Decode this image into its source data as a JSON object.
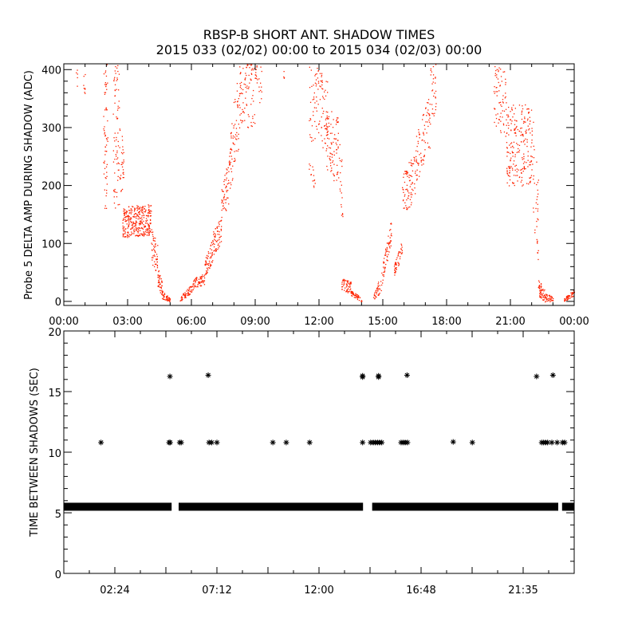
{
  "title": "RBSP-B SHORT ANT. SHADOW TIMES",
  "subtitle": "2015 033 (02/02) 00:00 to 2015 034 (02/03) 00:00",
  "colors": {
    "points": "#ff2200",
    "axes": "#000000",
    "asterisk": "#000000"
  },
  "chart_data": [
    {
      "type": "scatter",
      "ylabel": "Probe 5 DELTA AMP DURING SHADOW (ADC)",
      "xlabel": "",
      "xlim_hours": [
        0,
        24
      ],
      "ylim": [
        -7,
        410
      ],
      "x_major_step_hours": 3,
      "x_minor_step_hours": 1,
      "y_major_step": 100,
      "y_minor_step": 20,
      "xtick_labels": [
        "00:00",
        "03:00",
        "06:00",
        "09:00",
        "12:00",
        "15:00",
        "18:00",
        "21:00",
        "00:00"
      ],
      "ytick_values": [
        0,
        100,
        200,
        300,
        400
      ],
      "ytick_labels": [
        "0",
        "100",
        "200",
        "300",
        "400"
      ],
      "note_point_clusters": "each cluster = [start_hour, end_hour, min_ADC_start, max_ADC_start, min_ADC_end, max_ADC_end, point_count]",
      "point_clusters": [
        [
          0.55,
          0.65,
          360,
          400,
          360,
          400,
          5
        ],
        [
          0.9,
          1.0,
          350,
          400,
          350,
          400,
          8
        ],
        [
          1.85,
          2.05,
          160,
          410,
          160,
          410,
          60
        ],
        [
          2.3,
          2.6,
          160,
          410,
          160,
          410,
          70
        ],
        [
          2.6,
          2.8,
          200,
          300,
          170,
          280,
          30
        ],
        [
          2.75,
          4.1,
          110,
          165,
          115,
          168,
          320
        ],
        [
          4.1,
          4.4,
          70,
          130,
          40,
          100,
          50
        ],
        [
          4.4,
          4.6,
          25,
          60,
          10,
          40,
          40
        ],
        [
          4.6,
          5.0,
          5,
          20,
          0,
          5,
          50
        ],
        [
          5.45,
          6.0,
          0,
          8,
          15,
          30,
          60
        ],
        [
          6.0,
          6.6,
          20,
          40,
          30,
          50,
          70
        ],
        [
          6.6,
          7.0,
          40,
          70,
          70,
          110,
          60
        ],
        [
          7.0,
          7.4,
          80,
          120,
          100,
          150,
          60
        ],
        [
          7.4,
          7.8,
          140,
          200,
          170,
          260,
          60
        ],
        [
          7.8,
          8.2,
          180,
          300,
          250,
          400,
          60
        ],
        [
          8.2,
          9.0,
          300,
          410,
          300,
          410,
          90
        ],
        [
          9.0,
          9.3,
          340,
          410,
          340,
          410,
          20
        ],
        [
          10.3,
          10.35,
          380,
          400,
          380,
          400,
          4
        ],
        [
          11.5,
          11.8,
          230,
          410,
          180,
          400,
          40
        ],
        [
          11.8,
          12.4,
          290,
          410,
          250,
          380,
          80
        ],
        [
          12.3,
          12.9,
          220,
          340,
          200,
          320,
          80
        ],
        [
          12.9,
          13.1,
          150,
          280,
          140,
          270,
          20
        ],
        [
          13.05,
          13.5,
          15,
          40,
          15,
          35,
          60
        ],
        [
          13.5,
          14.0,
          10,
          22,
          0,
          5,
          50
        ],
        [
          14.5,
          15.0,
          0,
          5,
          20,
          60,
          40
        ],
        [
          15.0,
          15.4,
          40,
          70,
          100,
          145,
          60
        ],
        [
          15.5,
          15.9,
          40,
          60,
          80,
          110,
          50
        ],
        [
          15.9,
          16.5,
          150,
          220,
          170,
          260,
          80
        ],
        [
          16.5,
          17.2,
          200,
          280,
          260,
          360,
          80
        ],
        [
          17.2,
          17.5,
          300,
          410,
          330,
          410,
          30
        ],
        [
          20.2,
          20.8,
          300,
          410,
          280,
          400,
          70
        ],
        [
          20.8,
          22.0,
          200,
          340,
          200,
          340,
          220
        ],
        [
          22.0,
          22.3,
          150,
          360,
          60,
          220,
          40
        ],
        [
          22.3,
          22.6,
          10,
          40,
          0,
          20,
          50
        ],
        [
          22.6,
          23.0,
          0,
          15,
          0,
          10,
          40
        ],
        [
          23.5,
          24.0,
          0,
          5,
          10,
          22,
          50
        ]
      ]
    },
    {
      "type": "scatter",
      "ylabel": "TIME BETWEEN SHADOWS (SEC)",
      "xlabel": "",
      "xlim_hours": [
        0,
        24
      ],
      "ylim": [
        0,
        20
      ],
      "x_minor_step_hours": 1.2,
      "y_major_step": 5,
      "y_minor_step": 1,
      "xtick_labels": [
        "02:24",
        "07:12",
        "12:00",
        "16:48",
        "21:35"
      ],
      "xtick_hours": [
        2.4,
        7.2,
        12.0,
        16.8,
        21.6
      ],
      "ytick_values": [
        0,
        5,
        10,
        15,
        20
      ],
      "ytick_labels": [
        "0",
        "5",
        "10",
        "15",
        "20"
      ],
      "baseline_value": 5.5,
      "baseline_segments_hours": [
        [
          0,
          5.07
        ],
        [
          5.4,
          14.07
        ],
        [
          14.5,
          23.25
        ],
        [
          23.43,
          24
        ]
      ],
      "points": [
        {
          "x": 1.75,
          "y": 10.8
        },
        {
          "x": 4.95,
          "y": 10.8
        },
        {
          "x": 5.0,
          "y": 10.8
        },
        {
          "x": 5.45,
          "y": 10.8
        },
        {
          "x": 5.52,
          "y": 10.8
        },
        {
          "x": 6.83,
          "y": 10.8
        },
        {
          "x": 6.95,
          "y": 10.8
        },
        {
          "x": 7.2,
          "y": 10.8
        },
        {
          "x": 9.83,
          "y": 10.8
        },
        {
          "x": 10.46,
          "y": 10.8
        },
        {
          "x": 11.56,
          "y": 10.8
        },
        {
          "x": 14.05,
          "y": 10.8
        },
        {
          "x": 14.43,
          "y": 10.8
        },
        {
          "x": 14.55,
          "y": 10.8
        },
        {
          "x": 14.65,
          "y": 10.8
        },
        {
          "x": 14.75,
          "y": 10.8
        },
        {
          "x": 14.85,
          "y": 10.8
        },
        {
          "x": 14.95,
          "y": 10.8
        },
        {
          "x": 15.86,
          "y": 10.8
        },
        {
          "x": 15.95,
          "y": 10.8
        },
        {
          "x": 16.05,
          "y": 10.8
        },
        {
          "x": 16.16,
          "y": 10.8
        },
        {
          "x": 18.31,
          "y": 10.85
        },
        {
          "x": 19.21,
          "y": 10.8
        },
        {
          "x": 22.47,
          "y": 10.8
        },
        {
          "x": 22.55,
          "y": 10.8
        },
        {
          "x": 22.65,
          "y": 10.8
        },
        {
          "x": 22.75,
          "y": 10.8
        },
        {
          "x": 22.95,
          "y": 10.8
        },
        {
          "x": 23.2,
          "y": 10.8
        },
        {
          "x": 23.45,
          "y": 10.8
        },
        {
          "x": 23.55,
          "y": 10.8
        },
        {
          "x": 4.99,
          "y": 16.25
        },
        {
          "x": 6.79,
          "y": 16.35
        },
        {
          "x": 14.05,
          "y": 16.3
        },
        {
          "x": 14.05,
          "y": 16.2
        },
        {
          "x": 14.8,
          "y": 16.3
        },
        {
          "x": 14.8,
          "y": 16.2
        },
        {
          "x": 16.14,
          "y": 16.35
        },
        {
          "x": 22.23,
          "y": 16.25
        },
        {
          "x": 23.0,
          "y": 16.35
        }
      ]
    }
  ]
}
